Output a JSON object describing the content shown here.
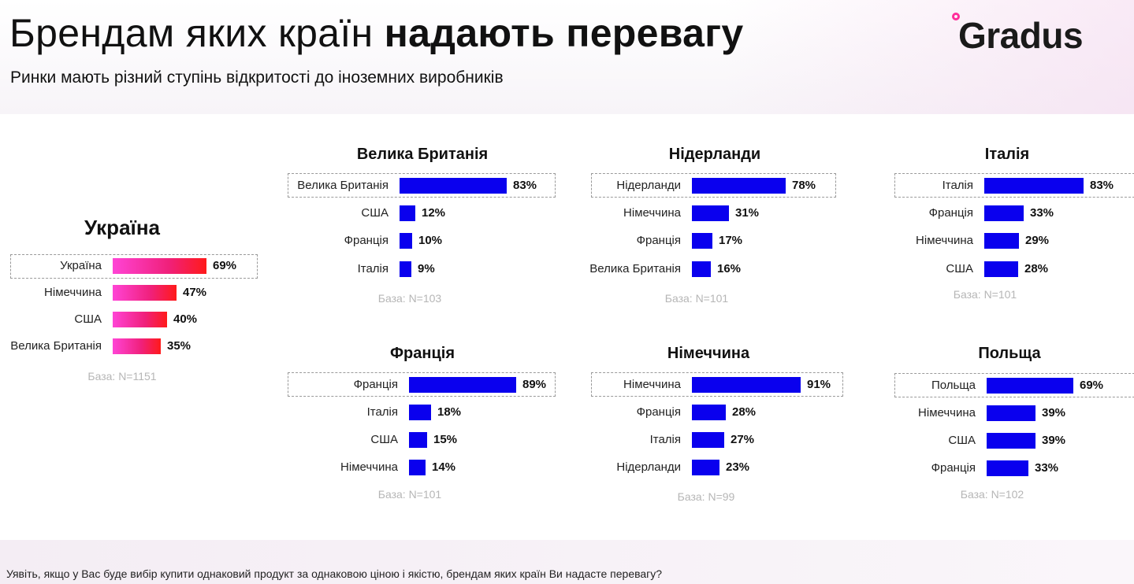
{
  "header": {
    "title_regular": "Брендам яких країн",
    "title_bold": "надають перевагу",
    "subtitle": "Ринки мають різний ступінь відкритості до іноземних виробників",
    "logo_text": "Gradus"
  },
  "footer": {
    "question": "Уявіть, якщо у Вас буде вибір купити однаковий продукт за однаковою ціною і якістю, брендам яких країн Ви надасте перевагу?"
  },
  "colors": {
    "bar_blue": "#0a00ee",
    "bar_pink_start": "#ff44d6",
    "bar_pink_end": "#ff1a1a",
    "logo_accent": "#ff2d9b"
  },
  "chart_data": [
    {
      "type": "bar",
      "orientation": "horizontal",
      "title": "Україна",
      "categories": [
        "Україна",
        "Німеччина",
        "США",
        "Велика Британія"
      ],
      "values": [
        69,
        47,
        40,
        35
      ],
      "labels": [
        "69%",
        "47%",
        "40%",
        "35%"
      ],
      "base": "База: N=1151",
      "xlim": [
        0,
        100
      ]
    },
    {
      "type": "bar",
      "orientation": "horizontal",
      "title": "Велика Британія",
      "categories": [
        "Велика Британія",
        "США",
        "Франція",
        "Італія"
      ],
      "values": [
        83,
        12,
        10,
        9
      ],
      "labels": [
        "83%",
        "12%",
        "10%",
        "9%"
      ],
      "base": "База: N=103",
      "xlim": [
        0,
        100
      ]
    },
    {
      "type": "bar",
      "orientation": "horizontal",
      "title": "Нідерланди",
      "categories": [
        "Нідерланди",
        "Німеччина",
        "Франція",
        "Велика Британія"
      ],
      "values": [
        78,
        31,
        17,
        16
      ],
      "labels": [
        "78%",
        "31%",
        "17%",
        "16%"
      ],
      "base": "База: N=101",
      "xlim": [
        0,
        100
      ]
    },
    {
      "type": "bar",
      "orientation": "horizontal",
      "title": "Італія",
      "categories": [
        "Італія",
        "Франція",
        "Німеччина",
        "США"
      ],
      "values": [
        83,
        33,
        29,
        28
      ],
      "labels": [
        "83%",
        "33%",
        "29%",
        "28%"
      ],
      "base": "База: N=101",
      "xlim": [
        0,
        100
      ]
    },
    {
      "type": "bar",
      "orientation": "horizontal",
      "title": "Франція",
      "categories": [
        "Франція",
        "Італія",
        "США",
        "Німеччина"
      ],
      "values": [
        89,
        18,
        15,
        14
      ],
      "labels": [
        "89%",
        "18%",
        "15%",
        "14%"
      ],
      "base": "База: N=101",
      "xlim": [
        0,
        100
      ]
    },
    {
      "type": "bar",
      "orientation": "horizontal",
      "title": "Німеччина",
      "categories": [
        "Німеччина",
        "Франція",
        "Італія",
        "Нідерланди"
      ],
      "values": [
        91,
        28,
        27,
        23
      ],
      "labels": [
        "91%",
        "28%",
        "27%",
        "23%"
      ],
      "base": "База: N=99",
      "xlim": [
        0,
        100
      ]
    },
    {
      "type": "bar",
      "orientation": "horizontal",
      "title": "Польща",
      "categories": [
        "Польща",
        "Німеччина",
        "США",
        "Франція"
      ],
      "values": [
        69,
        39,
        39,
        33
      ],
      "labels": [
        "69%",
        "39%",
        "39%",
        "33%"
      ],
      "base": "База: N=102",
      "xlim": [
        0,
        100
      ]
    }
  ]
}
